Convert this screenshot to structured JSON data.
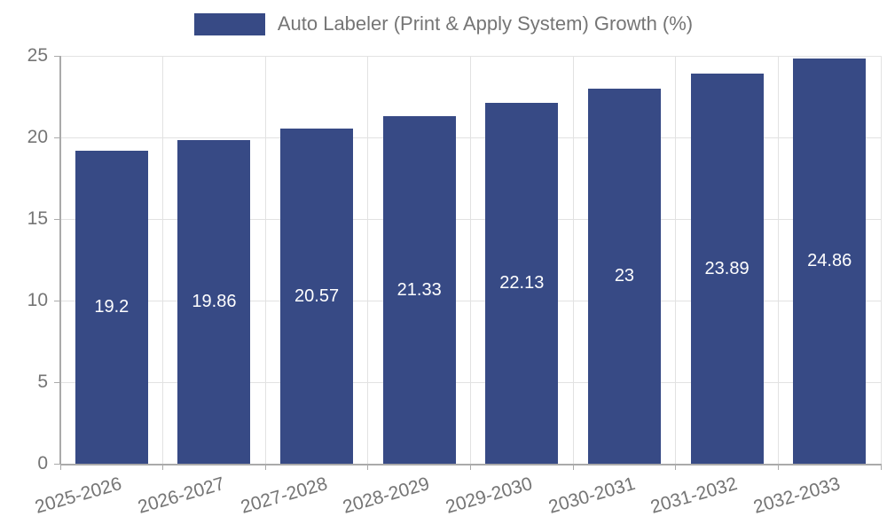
{
  "legend": {
    "label": "Auto Labeler (Print & Apply System) Growth (%)"
  },
  "colors": {
    "bar": "#374A85",
    "text_muted": "#757575",
    "grid": "#e2e2e2",
    "axis": "#aaaaaa",
    "value_label": "#ffffff"
  },
  "chart_data": {
    "type": "bar",
    "title": "",
    "xlabel": "",
    "ylabel": "",
    "categories": [
      "2025-2026",
      "2026-2027",
      "2027-2028",
      "2028-2029",
      "2029-2030",
      "2030-2031",
      "2031-2032",
      "2032-2033"
    ],
    "series": [
      {
        "name": "Auto Labeler (Print & Apply System) Growth (%)",
        "values": [
          19.2,
          19.86,
          20.57,
          21.33,
          22.13,
          23,
          23.89,
          24.86
        ]
      }
    ],
    "ylim": [
      0,
      25
    ],
    "yticks": [
      0,
      5,
      10,
      15,
      20,
      25
    ],
    "grid": true,
    "legend_position": "top-center",
    "value_labels": "inside-middle",
    "bar_color": "#374A85"
  }
}
